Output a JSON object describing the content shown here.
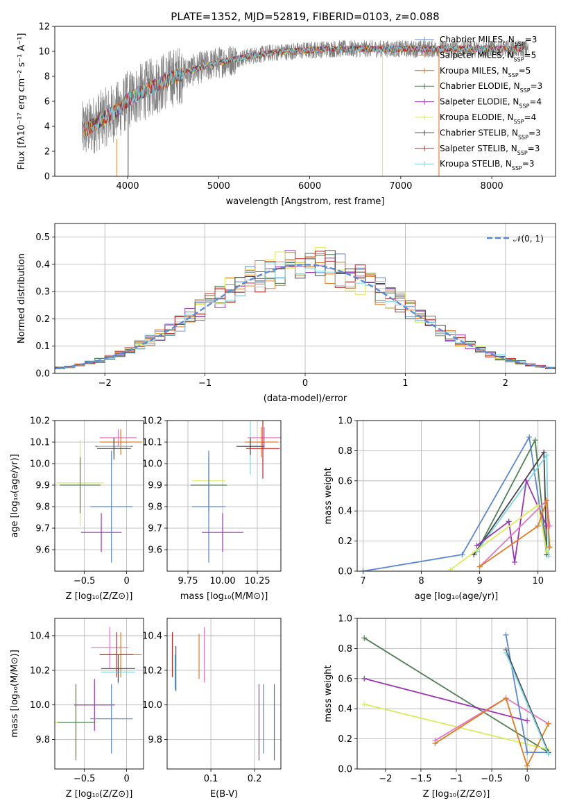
{
  "figure": {
    "title": "PLATE=1352, MJD=52819, FIBERID=0103, z=0.088"
  },
  "legend_models": [
    {
      "label": "Chabrier MILES, N",
      "sub": "SSP",
      "suffix": "=3",
      "color": "#5b86d6"
    },
    {
      "label": "Salpeter MILES, N",
      "sub": "SSP",
      "suffix": "=5",
      "color": "#f07f32"
    },
    {
      "label": "Kroupa MILES, N",
      "sub": "SSP",
      "suffix": "=5",
      "color": "#e07b1f"
    },
    {
      "label": "Chabrier ELODIE, N",
      "sub": "SSP",
      "suffix": "=3",
      "color": "#4f7f54"
    },
    {
      "label": "Salpeter ELODIE, N",
      "sub": "SSP",
      "suffix": "=4",
      "color": "#9b33b6"
    },
    {
      "label": "Kroupa ELODIE, N",
      "sub": "SSP",
      "suffix": "=4",
      "color": "#d9ec5a"
    },
    {
      "label": "Chabrier STELIB, N",
      "sub": "SSP",
      "suffix": "=3",
      "color": "#444444"
    },
    {
      "label": "Salpeter STELIB, N",
      "sub": "SSP",
      "suffix": "=3",
      "color": "#c42525"
    },
    {
      "label": "Kroupa STELIB, N",
      "sub": "SSP",
      "suffix": "=3",
      "color": "#7fd6e6"
    }
  ],
  "chart_data": [
    {
      "id": "spectrum",
      "type": "line",
      "xlabel": "wavelength [Angstrom, rest frame]",
      "ylabel": "Flux [fλ10⁻¹⁷ erg cm⁻² s⁻¹ A⁻¹]",
      "xlim": [
        3200,
        8700
      ],
      "ylim": [
        0,
        12
      ],
      "xticks": [
        4000,
        5000,
        6000,
        7000,
        8000
      ],
      "yticks": [
        0,
        2,
        4,
        6,
        8,
        10,
        12
      ],
      "grid": false,
      "legend": "right",
      "data_color": "#808080",
      "continuum_x": [
        3500,
        3600,
        3700,
        3800,
        3900,
        4000,
        4200,
        4400,
        4600,
        4800,
        5000,
        5200,
        5400,
        5600,
        5800,
        6000,
        6200,
        6400,
        6600,
        6800,
        7000,
        7200,
        7400,
        7600,
        7800,
        8000,
        8200,
        8400
      ],
      "continuum_y": [
        3.6,
        4.0,
        4.5,
        4.9,
        5.3,
        6.1,
        6.9,
        7.6,
        8.2,
        8.7,
        9.1,
        9.4,
        9.7,
        9.9,
        10.0,
        10.1,
        10.2,
        10.2,
        10.2,
        10.2,
        10.2,
        10.2,
        10.2,
        10.2,
        10.2,
        10.2,
        10.2,
        10.2
      ]
    },
    {
      "id": "residuals",
      "type": "histogram",
      "xlabel": "(data-model)/error",
      "ylabel": "Normed distribution",
      "xlim": [
        -2.5,
        2.5
      ],
      "ylim": [
        0,
        0.55
      ],
      "xticks": [
        -2,
        -1,
        0,
        1,
        2
      ],
      "yticks": [
        0.0,
        0.1,
        0.2,
        0.3,
        0.4,
        0.5
      ],
      "grid": true,
      "legend": "top-right",
      "reference_label": "𝒩(0, 1)",
      "reference_color": "#5b8bd6",
      "bin_width": 0.1
    },
    {
      "id": "age-Z",
      "type": "scatter",
      "xlabel": "Z [log₁₀(Z/Z⊙)]",
      "ylabel": "age  [log₁₀(age/yr)]",
      "xlim": [
        -0.85,
        0.2
      ],
      "ylim": [
        9.5,
        10.2
      ],
      "xticks": [
        -0.5,
        0.0
      ],
      "yticks": [
        9.6,
        9.7,
        9.8,
        9.9,
        10.0,
        10.1,
        10.2
      ],
      "grid": true,
      "points": [
        {
          "x": -0.55,
          "y": 9.91,
          "xerr": 0.28,
          "yerr": 0.2,
          "color": "#d9ec5a"
        },
        {
          "x": -0.55,
          "y": 9.9,
          "xerr": 0.24,
          "yerr": 0.13,
          "color": "#4f7f54"
        },
        {
          "x": -0.3,
          "y": 9.68,
          "xerr": 0.24,
          "yerr": 0.09,
          "color": "#9b33b6"
        },
        {
          "x": -0.18,
          "y": 9.8,
          "xerr": 0.25,
          "yerr": 0.26,
          "color": "#5b86d6"
        },
        {
          "x": -0.1,
          "y": 10.12,
          "xerr": 0.22,
          "yerr": 0.04,
          "color": "#e377c2"
        },
        {
          "x": -0.07,
          "y": 10.1,
          "xerr": 0.25,
          "yerr": 0.06,
          "color": "#e07b1f"
        },
        {
          "x": -0.15,
          "y": 10.08,
          "xerr": 0.22,
          "yerr": 0.04,
          "color": "#c42525"
        },
        {
          "x": -0.15,
          "y": 10.08,
          "xerr": 0.2,
          "yerr": 0.04,
          "color": "#7fd6e6"
        },
        {
          "x": -0.15,
          "y": 10.07,
          "xerr": 0.2,
          "yerr": 0.05,
          "color": "#444444"
        }
      ]
    },
    {
      "id": "age-mass",
      "type": "scatter",
      "xlabel": "mass [log₁₀(M/M⊙)]",
      "ylabel": "",
      "xlim": [
        9.6,
        10.42
      ],
      "ylim": [
        9.5,
        10.2
      ],
      "xticks": [
        9.75,
        10.0,
        10.25
      ],
      "xtick_labels": [
        "9.75",
        "10.00",
        "10.25"
      ],
      "yticks": [
        9.6,
        9.7,
        9.8,
        9.9,
        10.0,
        10.1,
        10.2
      ],
      "grid": true,
      "points": [
        {
          "x": 9.9,
          "y": 9.92,
          "xerr": 0.12,
          "yerr": 0.12,
          "color": "#d9ec5a"
        },
        {
          "x": 9.9,
          "y": 9.9,
          "xerr": 0.13,
          "yerr": 0.13,
          "color": "#4f7f54"
        },
        {
          "x": 9.9,
          "y": 9.8,
          "xerr": 0.12,
          "yerr": 0.26,
          "color": "#5b86d6"
        },
        {
          "x": 10.0,
          "y": 9.68,
          "xerr": 0.15,
          "yerr": 0.09,
          "color": "#9b33b6"
        },
        {
          "x": 10.3,
          "y": 10.12,
          "xerr": 0.12,
          "yerr": 0.05,
          "color": "#e377c2"
        },
        {
          "x": 10.28,
          "y": 10.1,
          "xerr": 0.12,
          "yerr": 0.07,
          "color": "#e07b1f"
        },
        {
          "x": 10.29,
          "y": 10.07,
          "xerr": 0.12,
          "yerr": 0.14,
          "color": "#c42525"
        },
        {
          "x": 10.2,
          "y": 10.08,
          "xerr": 0.1,
          "yerr": 0.13,
          "color": "#7fd6e6"
        },
        {
          "x": 10.2,
          "y": 10.08,
          "xerr": 0.1,
          "yerr": 0.04,
          "color": "#444444"
        }
      ]
    },
    {
      "id": "weight-age",
      "type": "line",
      "xlabel": "age  [log₁₀(age/yr)]",
      "ylabel": "mass weight",
      "xlim": [
        6.9,
        10.3
      ],
      "ylim": [
        0,
        1
      ],
      "xticks": [
        7,
        8,
        9,
        10
      ],
      "yticks": [
        0.0,
        0.2,
        0.4,
        0.6,
        0.8,
        1.0
      ],
      "grid": true,
      "series": [
        {
          "color": "#5b86d6",
          "x": [
            7.0,
            8.7,
            9.85,
            10.15
          ],
          "y": [
            0.0,
            0.11,
            0.89,
            0.11
          ]
        },
        {
          "color": "#4f7f54",
          "x": [
            8.95,
            9.95,
            10.15
          ],
          "y": [
            0.13,
            0.87,
            0.11
          ]
        },
        {
          "color": "#444444",
          "x": [
            8.9,
            10.1,
            10.15
          ],
          "y": [
            0.11,
            0.79,
            0.11
          ]
        },
        {
          "color": "#7fd6e6",
          "x": [
            8.95,
            10.15,
            10.18
          ],
          "y": [
            0.13,
            0.77,
            0.1
          ]
        },
        {
          "color": "#9b33b6",
          "x": [
            8.95,
            9.5,
            9.6,
            9.8,
            10.15
          ],
          "y": [
            0.17,
            0.33,
            0.06,
            0.6,
            0.3
          ]
        },
        {
          "color": "#d9ec5a",
          "x": [
            8.5,
            10.0,
            10.15
          ],
          "y": [
            0.01,
            0.44,
            0.13
          ]
        },
        {
          "color": "#e377c2",
          "x": [
            9.0,
            10.15,
            10.2
          ],
          "y": [
            0.03,
            0.47,
            0.3
          ]
        },
        {
          "color": "#e07b1f",
          "x": [
            9.0,
            10.0,
            10.15,
            10.2
          ],
          "y": [
            0.03,
            0.3,
            0.47,
            0.16
          ]
        }
      ]
    },
    {
      "id": "mass-Z",
      "type": "scatter",
      "xlabel": "Z [log₁₀(Z/Z⊙)]",
      "ylabel": "mass [log₁₀(M/M⊙)]",
      "xlim": [
        -0.85,
        0.2
      ],
      "ylim": [
        9.63,
        10.5
      ],
      "xticks": [
        -0.5,
        0.0
      ],
      "yticks": [
        9.8,
        10.0,
        10.2,
        10.4
      ],
      "grid": true,
      "points": [
        {
          "x": -0.6,
          "y": 9.9,
          "xerr": 0.25,
          "yerr": 0.2,
          "color": "#d9ec5a"
        },
        {
          "x": -0.6,
          "y": 9.9,
          "xerr": 0.22,
          "yerr": 0.22,
          "color": "#4f7f54"
        },
        {
          "x": -0.38,
          "y": 10.0,
          "xerr": 0.24,
          "yerr": 0.15,
          "color": "#9b33b6"
        },
        {
          "x": -0.18,
          "y": 9.92,
          "xerr": 0.25,
          "yerr": 0.2,
          "color": "#5b86d6"
        },
        {
          "x": -0.2,
          "y": 10.33,
          "xerr": 0.22,
          "yerr": 0.12,
          "color": "#e377c2"
        },
        {
          "x": -0.07,
          "y": 10.29,
          "xerr": 0.25,
          "yerr": 0.13,
          "color": "#e07b1f"
        },
        {
          "x": -0.12,
          "y": 10.29,
          "xerr": 0.2,
          "yerr": 0.13,
          "color": "#c42525"
        },
        {
          "x": -0.1,
          "y": 10.19,
          "xerr": 0.2,
          "yerr": 0.07,
          "color": "#7fd6e6"
        },
        {
          "x": -0.1,
          "y": 10.21,
          "xerr": 0.2,
          "yerr": 0.08,
          "color": "#444444"
        }
      ]
    },
    {
      "id": "mass-EBV",
      "type": "scatter",
      "xlabel": "E(B-V)",
      "ylabel": "",
      "xlim": [
        0.0,
        0.26
      ],
      "ylim": [
        9.63,
        10.5
      ],
      "xticks": [
        0.1,
        0.2
      ],
      "yticks": [
        9.8,
        10.0,
        10.2,
        10.4
      ],
      "grid": true,
      "points": [
        {
          "x": 0.012,
          "y": 10.29,
          "yerr": 0.13,
          "color": "#c42525"
        },
        {
          "x": 0.02,
          "y": 10.21,
          "yerr": 0.13,
          "color": "#444444"
        },
        {
          "x": 0.018,
          "y": 10.19,
          "yerr": 0.1,
          "color": "#7fd6e6"
        },
        {
          "x": 0.073,
          "y": 10.28,
          "yerr": 0.13,
          "color": "#e07b1f"
        },
        {
          "x": 0.085,
          "y": 10.29,
          "yerr": 0.16,
          "color": "#e377c2"
        },
        {
          "x": 0.21,
          "y": 9.9,
          "yerr": 0.22,
          "color": "#9b33b6"
        },
        {
          "x": 0.22,
          "y": 9.92,
          "yerr": 0.2,
          "color": "#5b86d6"
        },
        {
          "x": 0.245,
          "y": 9.9,
          "yerr": 0.22,
          "color": "#4f7f54"
        }
      ]
    },
    {
      "id": "weight-Z",
      "type": "line",
      "xlabel": "Z [log₁₀(Z/Z⊙)]",
      "ylabel": "mass weight",
      "xlim": [
        -2.4,
        0.4
      ],
      "ylim": [
        0,
        1
      ],
      "xticks": [
        -2.0,
        -1.5,
        -1.0,
        -0.5,
        0.0
      ],
      "yticks": [
        0.0,
        0.2,
        0.4,
        0.6,
        0.8,
        1.0
      ],
      "grid": true,
      "series": [
        {
          "color": "#4f7f54",
          "x": [
            -2.3,
            0.3
          ],
          "y": [
            0.87,
            0.11
          ]
        },
        {
          "color": "#9b33b6",
          "x": [
            -2.3,
            0.0
          ],
          "y": [
            0.6,
            0.32
          ]
        },
        {
          "color": "#d9ec5a",
          "x": [
            -2.3,
            0.3
          ],
          "y": [
            0.43,
            0.13
          ]
        },
        {
          "color": "#e377c2",
          "x": [
            -1.3,
            -0.3,
            0.3
          ],
          "y": [
            0.19,
            0.47,
            0.3
          ]
        },
        {
          "color": "#e07b1f",
          "x": [
            -1.3,
            -0.3,
            0.0,
            0.3
          ],
          "y": [
            0.17,
            0.47,
            0.02,
            0.3
          ]
        },
        {
          "color": "#5b86d6",
          "x": [
            -0.3,
            0.0,
            0.3
          ],
          "y": [
            0.89,
            0.11,
            0.11
          ]
        },
        {
          "color": "#444444",
          "x": [
            -0.3,
            0.3
          ],
          "y": [
            0.79,
            0.11
          ]
        },
        {
          "color": "#7fd6e6",
          "x": [
            -0.3,
            0.3
          ],
          "y": [
            0.77,
            0.1
          ]
        }
      ]
    }
  ]
}
